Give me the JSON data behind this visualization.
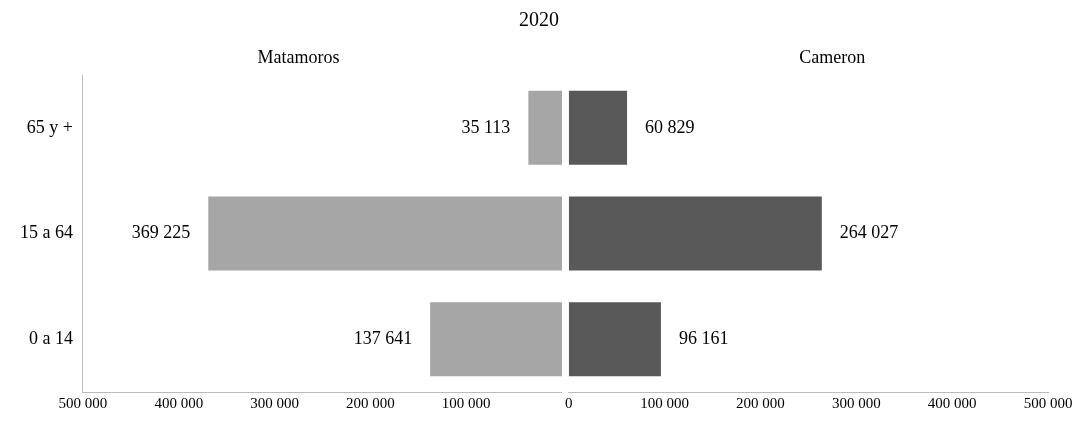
{
  "chart_data": [
    {
      "type": "bar",
      "title": "2020",
      "orientation": "horizontal",
      "categories": [
        "65 y +",
        "15 a 64",
        "0 a 14"
      ],
      "series": [
        {
          "name": "Matamoros",
          "color": "#a6a6a6",
          "values": [
            35113,
            369225,
            137641
          ],
          "value_labels": [
            "35 113",
            "369 225",
            "137 641"
          ]
        }
      ],
      "xlim": [
        500000,
        0
      ],
      "xticks": [
        {
          "value": 500000,
          "label": "500 000"
        },
        {
          "value": 400000,
          "label": "400 000"
        },
        {
          "value": 300000,
          "label": "300 000"
        },
        {
          "value": 200000,
          "label": "200 000"
        },
        {
          "value": 100000,
          "label": "100 000"
        }
      ],
      "grid": false,
      "legend": false
    },
    {
      "type": "bar",
      "orientation": "horizontal",
      "categories": [
        null,
        null,
        null
      ],
      "series": [
        {
          "name": "Cameron",
          "color": "#595959",
          "values": [
            60829,
            264027,
            96161
          ],
          "value_labels": [
            "60 829",
            "264 027",
            "96 161"
          ]
        }
      ],
      "xlim": [
        0,
        500000
      ],
      "xticks": [
        0,
        {
          "value": 100000,
          "label": "100 000"
        },
        {
          "value": 200000,
          "label": "200 000"
        },
        {
          "value": 300000,
          "label": "300 000"
        },
        {
          "value": 400000,
          "label": "400 000"
        },
        {
          "value": 500000,
          "label": "500 000"
        }
      ],
      "tick_labels": "x",
      "grid": false,
      "legend": false
    }
  ]
}
